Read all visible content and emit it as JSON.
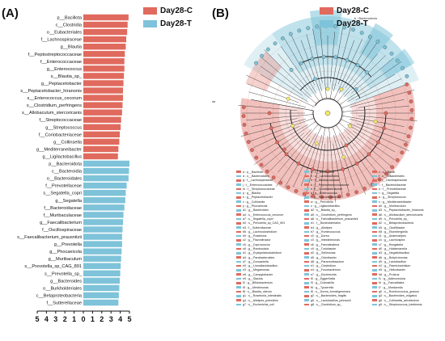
{
  "panel_a": {
    "label": "(A)",
    "legend": [
      {
        "name": "Day28-C",
        "color": "#e06a5e"
      },
      {
        "name": "Day28-T",
        "color": "#7ec3d9"
      }
    ]
  },
  "panel_b": {
    "label": "(B)",
    "legend": [
      {
        "name": "Day28-C",
        "color": "#e06a5e"
      },
      {
        "name": "Day28-T",
        "color": "#7ec3d9"
      }
    ],
    "clade_tags": [
      {
        "group": "C",
        "text": "a : Bacillota"
      },
      {
        "group": "T",
        "text": "b : Bacteroidota"
      }
    ],
    "key": [
      "a : p__Bacillota",
      "b : c__Bacteroidia",
      "c : c__Bacilli",
      "d : o__Bacteroidales",
      "e : o__Lactobacillales",
      "f : o__Eubacteriales",
      "g : f__Lachnospiraceae",
      "h : f__Muribaculaceae",
      "i : f__Oscillospiraceae",
      "j : f__Enterococcaceae",
      "k : f__Peptostreptococcaceae",
      "l : f__Bacteroidaceae",
      "m : f__Streptococcaceae",
      "n : f__Coriobacteriaceae",
      "o : f__Prevotellaceae",
      "p : g__Blautia",
      "q : g__Enterococcus",
      "r : g__Segatella",
      "s : g__Peptacetobacter",
      "t : g__Faecalibacterium",
      "u : g__Streptococcus",
      "v : g__Collinsella",
      "w : g__Prevotella",
      "x : g__Mediterraneibacter",
      "y : g__Phocaeicola",
      "z : g__Ligilactobacillus",
      "a0 : g__Muribaculum",
      "a1 : g__Bacteroides",
      "a2 : s__Blautia_sp_",
      "a3 : s__Peptacetobacter_hiranonis",
      "a4 : s__Enterococcus_cecorum",
      "a5 : s__Clostridium_perfringens",
      "a6 : s__Allobaculum_stercoricanis",
      "a7 : s__Segatella_copri",
      "a8 : s__Faecalibacterium_prausnitzii",
      "a9 : s__Prevotella_sp_",
      "b0 : s__Prevotella_sp_CAG_891",
      "b1 : f__Burkholderiales",
      "b2 : c__Betaproteobacteria",
      "b3 : f__Sutterellaceae",
      "b4 : g__Alistipes",
      "b5 : g__Oscillibacter",
      "b6 : g__Lachnoclostridium",
      "b7 : g__Ruminococcus",
      "b8 : g__Eisenbergiella",
      "b9 : g__Roseburia",
      "c0 : g__Dorea",
      "c1 : g__Anaerostipes",
      "c2 : g__Flavonifractor",
      "c3 : g__Intestinimonas",
      "c4 : g__Lachnospira",
      "c5 : g__Coprococcus",
      "c6 : g__Faecalicatena",
      "c7 : g__Hungatella",
      "c8 : g__Romboutsia",
      "c9 : g__Turicibacter",
      "d0 : g__Holdemanella",
      "d1 : g__Erysipelatoclostridium",
      "d2 : g__Sellimonas",
      "d3 : g__Negativibacillus",
      "d4 : g__Parabacteroides",
      "d5 : g__Odoribacter",
      "d6 : g__Butyricimonas",
      "d7 : g__Duncaniella",
      "d8 : g__Paramuribaculum",
      "d9 : g__Lactobacillus",
      "e0 : g__Limosilactobacillus",
      "e1 : g__Clostridium",
      "e2 : g__Paeniclostridium",
      "e3 : g__Megamonas",
      "e4 : g__Fusobacterium",
      "e5 : g__Helicobacter",
      "e6 : g__Campylobacter",
      "e7 : g__Escherichia",
      "e8 : g__Proteus",
      "e9 : g__Slackia",
      "f0 : g__Eggerthella",
      "f1 : g__Adlercreutzia",
      "f2 : g__Bifidobacterium",
      "f3 : g__Dubosiella",
      "f4 : g__Faecalitalea",
      "f5 : g__Merdimonas",
      "f6 : g__Tyzzerella",
      "f7 : g__Mordavella",
      "f8 : s__Blautia_obeum",
      "f9 : s__Dorea_formicigenerans",
      "g0 : s__Ruminococcus_gnavus",
      "g1 : s__Roseburia_intestinalis",
      "g2 : s__Bacteroides_fragilis",
      "g3 : s__Bacteroides_vulgatus",
      "g4 : s__Alistipes_putredinis",
      "g5 : s__Lactobacillus_johnsonii",
      "g6 : s__Collinsella_aerofaciens",
      "g7 : s__Escherichia_coli",
      "g8 : s__Clostridium_sp_",
      "g9 : s__Streptococcus_lutetiensis"
    ]
  },
  "chart_data": [
    {
      "type": "bar",
      "orientation": "horizontal",
      "xlim": [
        -5,
        5
      ],
      "xticks": [
        5,
        4,
        3,
        2,
        1,
        0,
        1,
        2,
        3,
        4,
        5
      ],
      "series": [
        {
          "name": "Day28-C",
          "color": "#e06a5e",
          "categories": [
            "p__Bacillota",
            "c__Clostridia",
            "o__Eubacteriales",
            "f__Lachnospiraceae",
            "g__Blautia",
            "f__Peptostreptococcaceae",
            "f__Enterococcaceae",
            "g__Enterococcus",
            "s__Blautia_sp_",
            "g__Peptacetobacter",
            "s__Peptacetobacter_hiranonis",
            "s__Enterococcus_cecorum",
            "s__Clostridium_perfringens",
            "s__Allobaculum_stercoricanis",
            "f__Streptococcaceae",
            "g__Streptococcus",
            "f__Coriobacteriaceae",
            "g__Collinsella",
            "g__Mediterraneibacter",
            "g__Ligilactobacillus"
          ],
          "values": [
            4.9,
            4.8,
            4.75,
            4.65,
            4.6,
            4.5,
            4.45,
            4.45,
            4.4,
            4.35,
            4.3,
            4.3,
            4.25,
            4.2,
            4.1,
            4.05,
            3.95,
            3.9,
            3.8,
            3.75
          ]
        },
        {
          "name": "Day28-T",
          "color": "#7ec3d9",
          "categories": [
            "p__Bacteroidota",
            "c__Bacteroidia",
            "o__Bacteroidales",
            "f__Prevotellaceae",
            "s__Segatella_copri",
            "g__Segatella",
            "f__Bacteroidaceae",
            "f__Muribaculaceae",
            "g__Faecalibacterium",
            "f__Oscillospiraceae",
            "s__Faecalibacterium_prausnitzii",
            "g__Prevotella",
            "g__Phocaeicola",
            "g__Muribaculum",
            "s__Prevotella_sp_CAG_891",
            "s__Prevotella_sp_",
            "g__Bacteroides",
            "o__Burkholderiales",
            "c__Betaproteobacteria",
            "f__Sutterellaceae"
          ],
          "values": [
            5.0,
            4.95,
            4.9,
            4.7,
            4.6,
            4.55,
            4.45,
            4.35,
            4.3,
            4.25,
            4.2,
            4.2,
            4.15,
            4.1,
            4.05,
            4.0,
            3.95,
            3.9,
            3.85,
            3.8
          ]
        }
      ]
    }
  ]
}
